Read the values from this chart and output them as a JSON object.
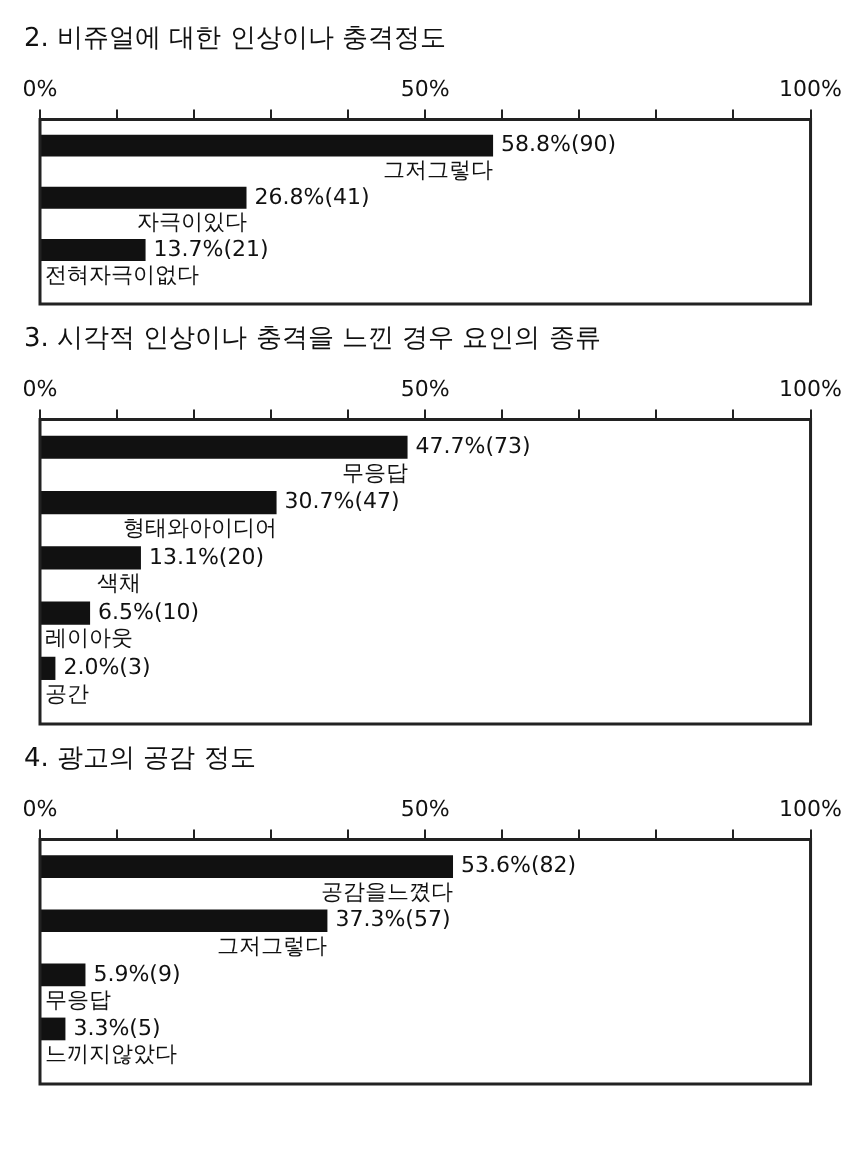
{
  "chart_data": [
    {
      "type": "bar",
      "orientation": "horizontal",
      "title": "2. 비쥬얼에 대한 인상이나 충격정도",
      "categories": [
        "그저그렇다",
        "자극이있다",
        "전혀자극이없다"
      ],
      "values": [
        58.8,
        26.8,
        13.7
      ],
      "value_labels": [
        "58.8%(90)",
        "26.8%(41)",
        "13.7%(21)"
      ],
      "color": "#111111",
      "xlim": [
        0,
        100
      ],
      "xticks": [
        {
          "value": 0,
          "label": "0%"
        },
        {
          "value": 10,
          "label": null
        },
        {
          "value": 20,
          "label": null
        },
        {
          "value": 30,
          "label": null
        },
        {
          "value": 40,
          "label": null
        },
        {
          "value": 50,
          "label": "50%"
        },
        {
          "value": 60,
          "label": null
        },
        {
          "value": 70,
          "label": null
        },
        {
          "value": 80,
          "label": null
        },
        {
          "value": 90,
          "label": null
        },
        {
          "value": 100,
          "label": "100%"
        }
      ],
      "grid": false,
      "legend": false
    },
    {
      "type": "bar",
      "orientation": "horizontal",
      "title": "3. 시각적 인상이나 충격을 느낀 경우 요인의 종류",
      "categories": [
        "무응답",
        "형태와아이디어",
        "색채",
        "레이아웃",
        "공간"
      ],
      "values": [
        47.7,
        30.7,
        13.1,
        6.5,
        2.0
      ],
      "value_labels": [
        "47.7%(73)",
        "30.7%(47)",
        "13.1%(20)",
        "6.5%(10)",
        "2.0%(3)"
      ],
      "color": "#111111",
      "xlim": [
        0,
        100
      ],
      "xticks": [
        {
          "value": 0,
          "label": "0%"
        },
        {
          "value": 10,
          "label": null
        },
        {
          "value": 20,
          "label": null
        },
        {
          "value": 30,
          "label": null
        },
        {
          "value": 40,
          "label": null
        },
        {
          "value": 50,
          "label": "50%"
        },
        {
          "value": 60,
          "label": null
        },
        {
          "value": 70,
          "label": null
        },
        {
          "value": 80,
          "label": null
        },
        {
          "value": 90,
          "label": null
        },
        {
          "value": 100,
          "label": "100%"
        }
      ],
      "grid": false,
      "legend": false
    },
    {
      "type": "bar",
      "orientation": "horizontal",
      "title": "4. 광고의 공감 정도",
      "categories": [
        "공감을느꼈다",
        "그저그렇다",
        "무응답",
        "느끼지않았다"
      ],
      "values": [
        53.6,
        37.3,
        5.9,
        3.3
      ],
      "value_labels": [
        "53.6%(82)",
        "37.3%(57)",
        "5.9%(9)",
        "3.3%(5)"
      ],
      "color": "#111111",
      "xlim": [
        0,
        100
      ],
      "xticks": [
        {
          "value": 0,
          "label": "0%"
        },
        {
          "value": 10,
          "label": null
        },
        {
          "value": 20,
          "label": null
        },
        {
          "value": 30,
          "label": null
        },
        {
          "value": 40,
          "label": null
        },
        {
          "value": 50,
          "label": "50%"
        },
        {
          "value": 60,
          "label": null
        },
        {
          "value": 70,
          "label": null
        },
        {
          "value": 80,
          "label": null
        },
        {
          "value": 90,
          "label": null
        },
        {
          "value": 100,
          "label": "100%"
        }
      ],
      "grid": false,
      "legend": false
    }
  ]
}
